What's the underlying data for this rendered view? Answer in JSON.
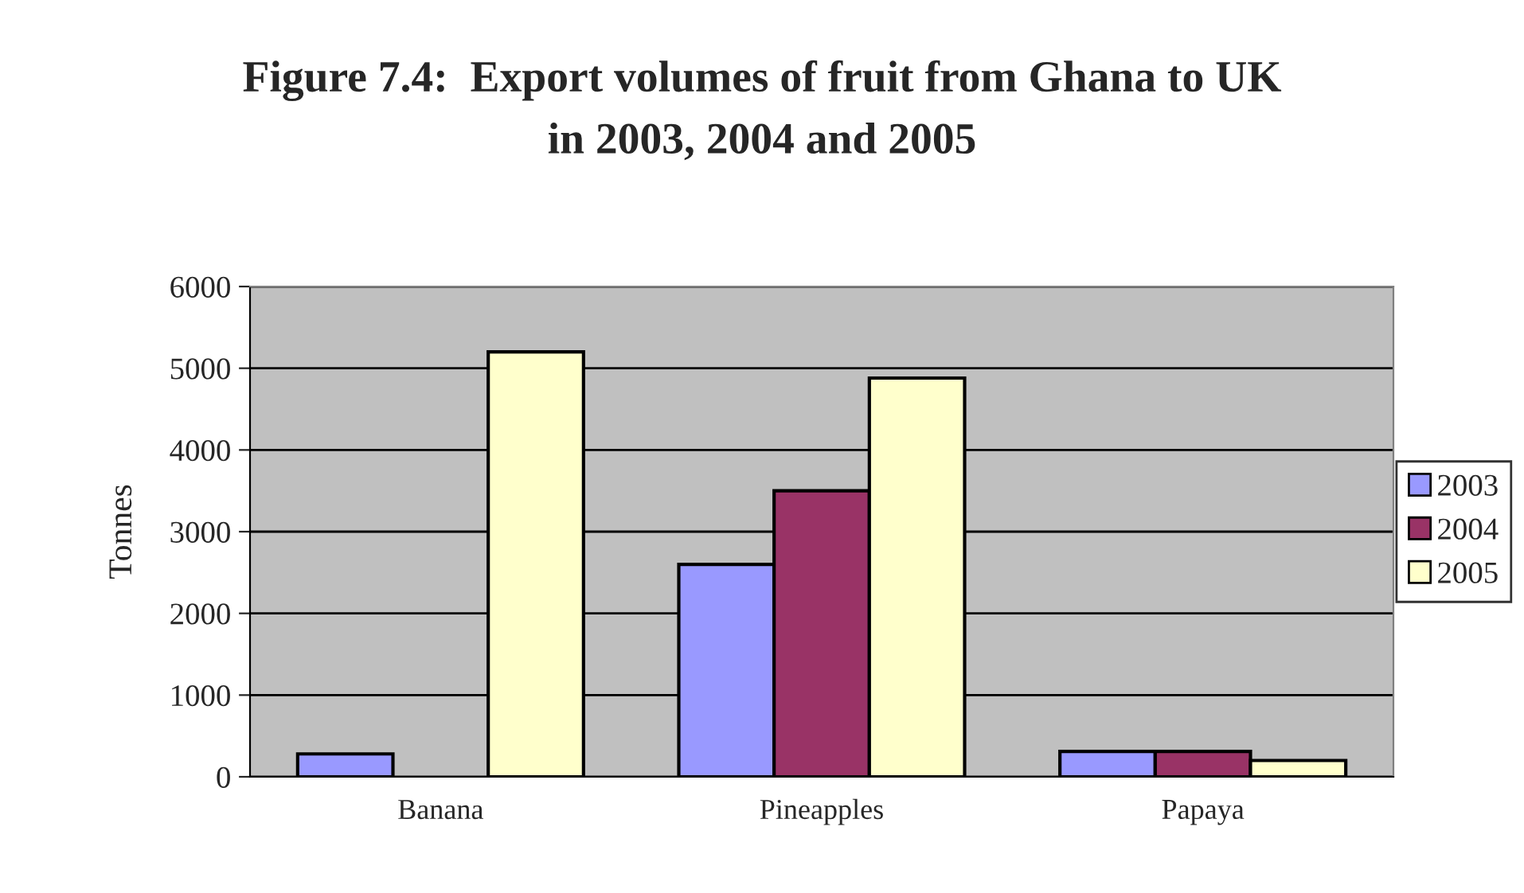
{
  "chart_data": {
    "type": "bar",
    "title": "Figure 7.4:  Export volumes of fruit from Ghana to UK\nin 2003, 2004 and 2005",
    "ylabel": "Tonnes",
    "categories": [
      "Banana",
      "Pineapples",
      "Papaya"
    ],
    "series": [
      {
        "name": "2003",
        "color": "#9999ff",
        "values": [
          280,
          2600,
          310
        ]
      },
      {
        "name": "2004",
        "color": "#993366",
        "values": [
          null,
          3500,
          310
        ]
      },
      {
        "name": "2005",
        "color": "#ffffcc",
        "values": [
          5200,
          4880,
          200
        ]
      }
    ],
    "ylim": [
      0,
      6000
    ],
    "yticks": [
      0,
      1000,
      2000,
      3000,
      4000,
      5000,
      6000
    ],
    "grid": "y",
    "legend": "right"
  }
}
